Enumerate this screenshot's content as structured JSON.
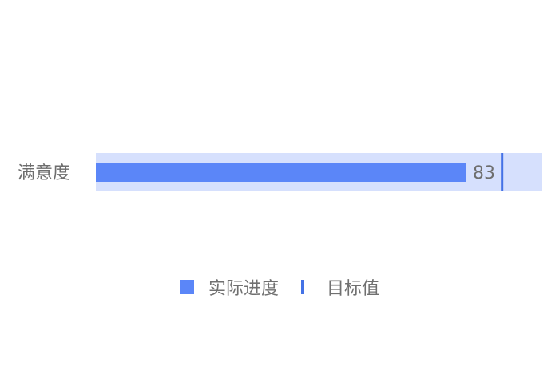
{
  "chart_data": {
    "type": "bar",
    "orientation": "horizontal",
    "categories": [
      "满意度"
    ],
    "series": [
      {
        "name": "实际进度",
        "values": [
          83
        ],
        "color": "#5b86f8"
      },
      {
        "name": "目标值",
        "values": [
          91
        ],
        "color": "#4472e6"
      }
    ],
    "background_band": {
      "color": "#d6e0fd",
      "max": 100
    },
    "xlim": [
      0,
      100
    ],
    "data_labels": [
      "83"
    ],
    "grid": false,
    "legend_placement": "bottom-center"
  }
}
